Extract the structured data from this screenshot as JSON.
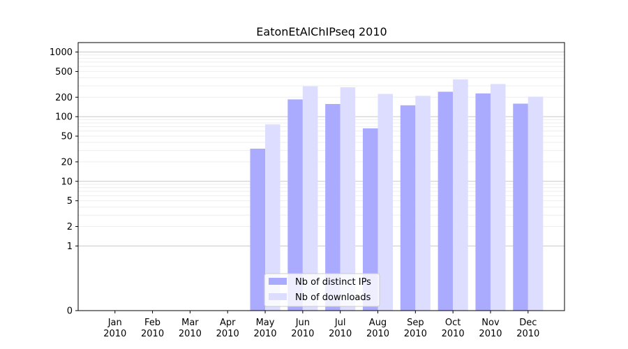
{
  "chart_data": {
    "type": "bar",
    "title": "EatonEtAlChIPseq 2010",
    "scale": "symlog",
    "categories": [
      {
        "month": "Jan",
        "year": "2010"
      },
      {
        "month": "Feb",
        "year": "2010"
      },
      {
        "month": "Mar",
        "year": "2010"
      },
      {
        "month": "Apr",
        "year": "2010"
      },
      {
        "month": "May",
        "year": "2010"
      },
      {
        "month": "Jun",
        "year": "2010"
      },
      {
        "month": "Jul",
        "year": "2010"
      },
      {
        "month": "Aug",
        "year": "2010"
      },
      {
        "month": "Sep",
        "year": "2010"
      },
      {
        "month": "Oct",
        "year": "2010"
      },
      {
        "month": "Nov",
        "year": "2010"
      },
      {
        "month": "Dec",
        "year": "2010"
      }
    ],
    "series": [
      {
        "name": "Nb of distinct IPs",
        "color": "#aaaaff",
        "values": [
          0,
          0,
          0,
          0,
          32,
          185,
          157,
          66,
          150,
          243,
          229,
          159
        ]
      },
      {
        "name": "Nb of downloads",
        "color": "#ddddff",
        "values": [
          0,
          0,
          0,
          0,
          76,
          295,
          285,
          225,
          210,
          378,
          320,
          204
        ]
      }
    ],
    "yticks": [
      "0",
      "1",
      "2",
      "5",
      "10",
      "20",
      "50",
      "100",
      "200",
      "500",
      "1000"
    ],
    "ylim": [
      0,
      1400
    ],
    "grid": true,
    "legend_position": "lower-center"
  }
}
